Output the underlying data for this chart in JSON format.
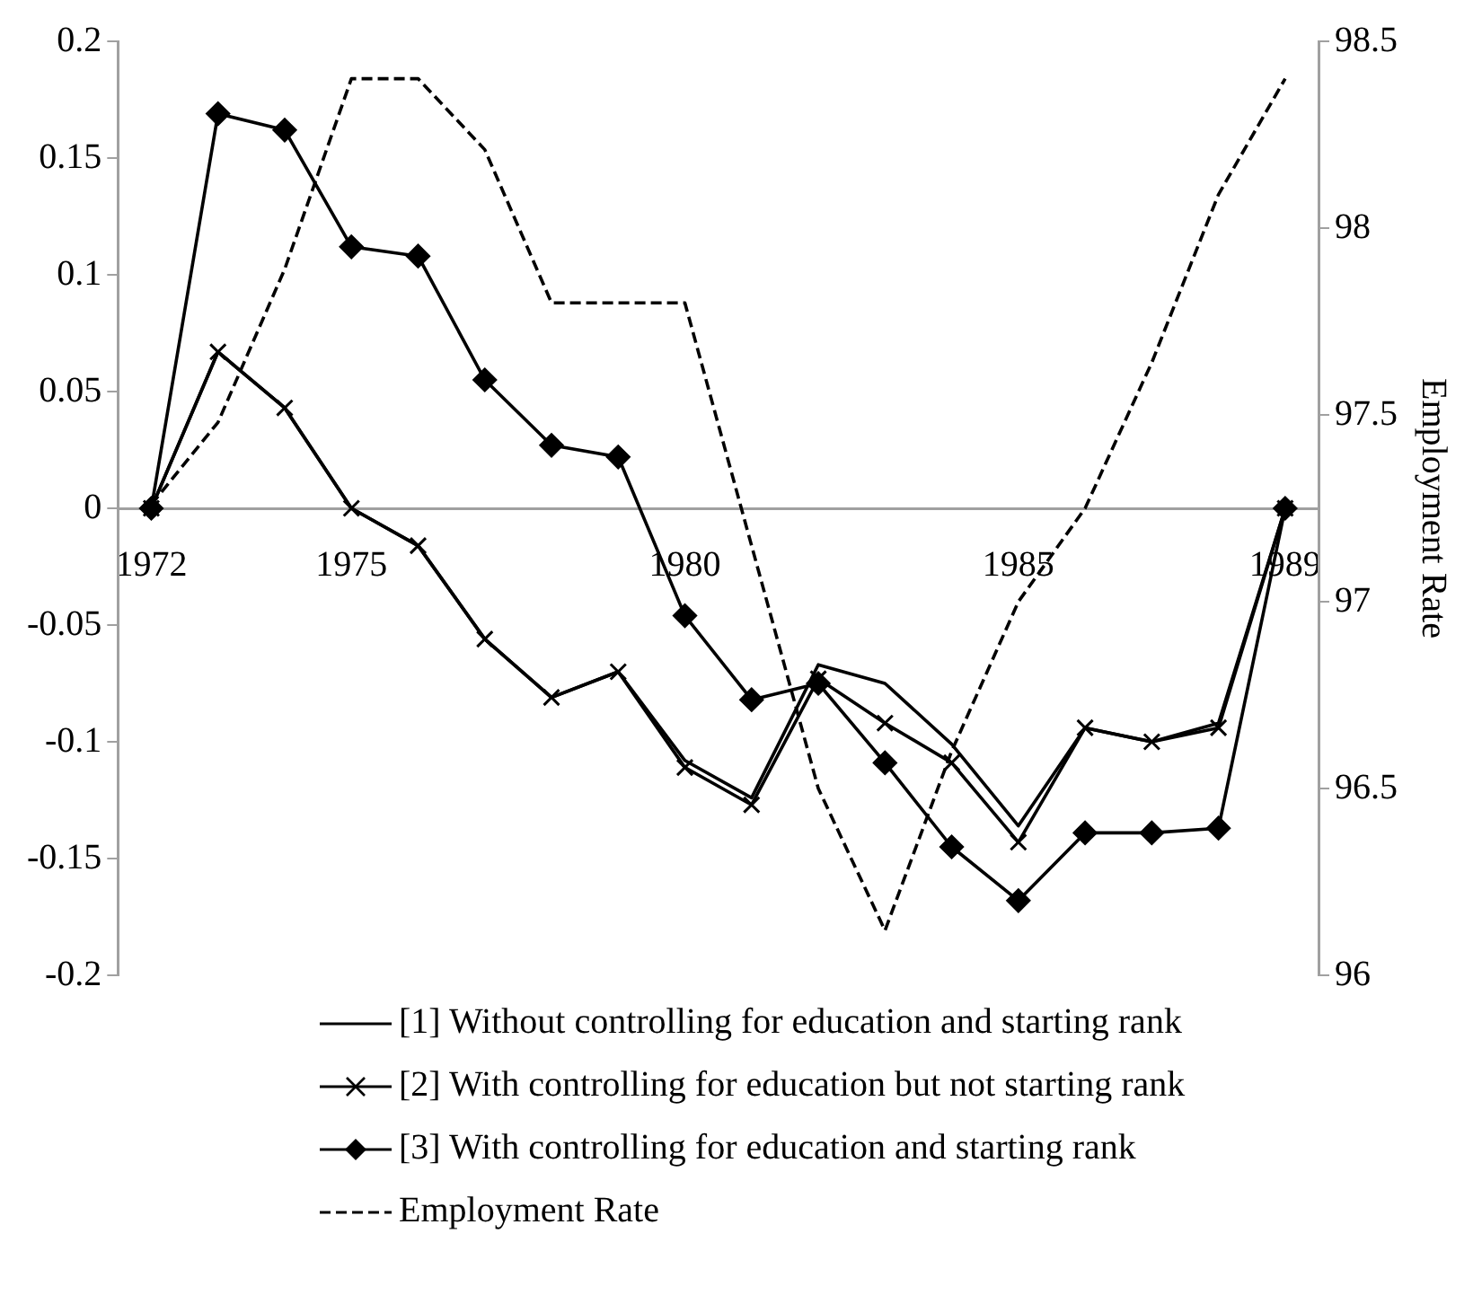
{
  "chart_data": {
    "type": "line",
    "y2label": "Employment Rate",
    "legend": "bottom",
    "categories": [
      "1972",
      null,
      null,
      "1975",
      null,
      null,
      null,
      null,
      "1980",
      null,
      null,
      null,
      null,
      "1985",
      null,
      null,
      null,
      "1989"
    ],
    "ylim": [
      -0.2,
      0.2
    ],
    "yticks": [
      -0.2,
      -0.15,
      -0.1,
      -0.05,
      0,
      0.05,
      0.1,
      0.15,
      0.2
    ],
    "y2lim": [
      96,
      98.5
    ],
    "y2ticks": [
      96,
      96.5,
      97,
      97.5,
      98,
      98.5
    ],
    "series": [
      {
        "name": "[1] Without controlling for education and starting rank",
        "color": "#000000",
        "line_style": "solid",
        "values": [
          0,
          0.067,
          0.043,
          0,
          -0.016,
          -0.056,
          -0.081,
          -0.07,
          -0.108,
          -0.124,
          -0.067,
          -0.075,
          -0.101,
          -0.136,
          -0.094,
          -0.1,
          -0.092,
          0
        ]
      },
      {
        "name": "[2] With controlling for education but not starting rank",
        "color": "#000000",
        "marker": "cross",
        "line_style": "solid",
        "values": [
          0,
          0.067,
          0.043,
          0,
          -0.016,
          -0.056,
          -0.081,
          -0.07,
          -0.111,
          -0.127,
          -0.073,
          -0.092,
          -0.109,
          -0.143,
          -0.094,
          -0.1,
          -0.094,
          0
        ]
      },
      {
        "name": "[3] With controlling for education and starting rank",
        "color": "#000000",
        "marker": "diamond",
        "line_style": "solid",
        "values": [
          0,
          0.169,
          0.162,
          0.112,
          0.108,
          0.055,
          0.027,
          0.022,
          -0.046,
          -0.082,
          -0.075,
          -0.109,
          -0.145,
          -0.168,
          -0.139,
          -0.139,
          -0.137,
          0
        ]
      },
      {
        "name": "Employment Rate",
        "color": "#000000",
        "line_style": "dashed",
        "axis": "y2",
        "values": [
          97.26,
          97.48,
          97.89,
          98.4,
          98.4,
          98.21,
          97.8,
          97.8,
          97.8,
          97.15,
          96.5,
          96.12,
          96.6,
          97.0,
          97.25,
          97.64,
          98.09,
          98.4
        ]
      }
    ]
  }
}
